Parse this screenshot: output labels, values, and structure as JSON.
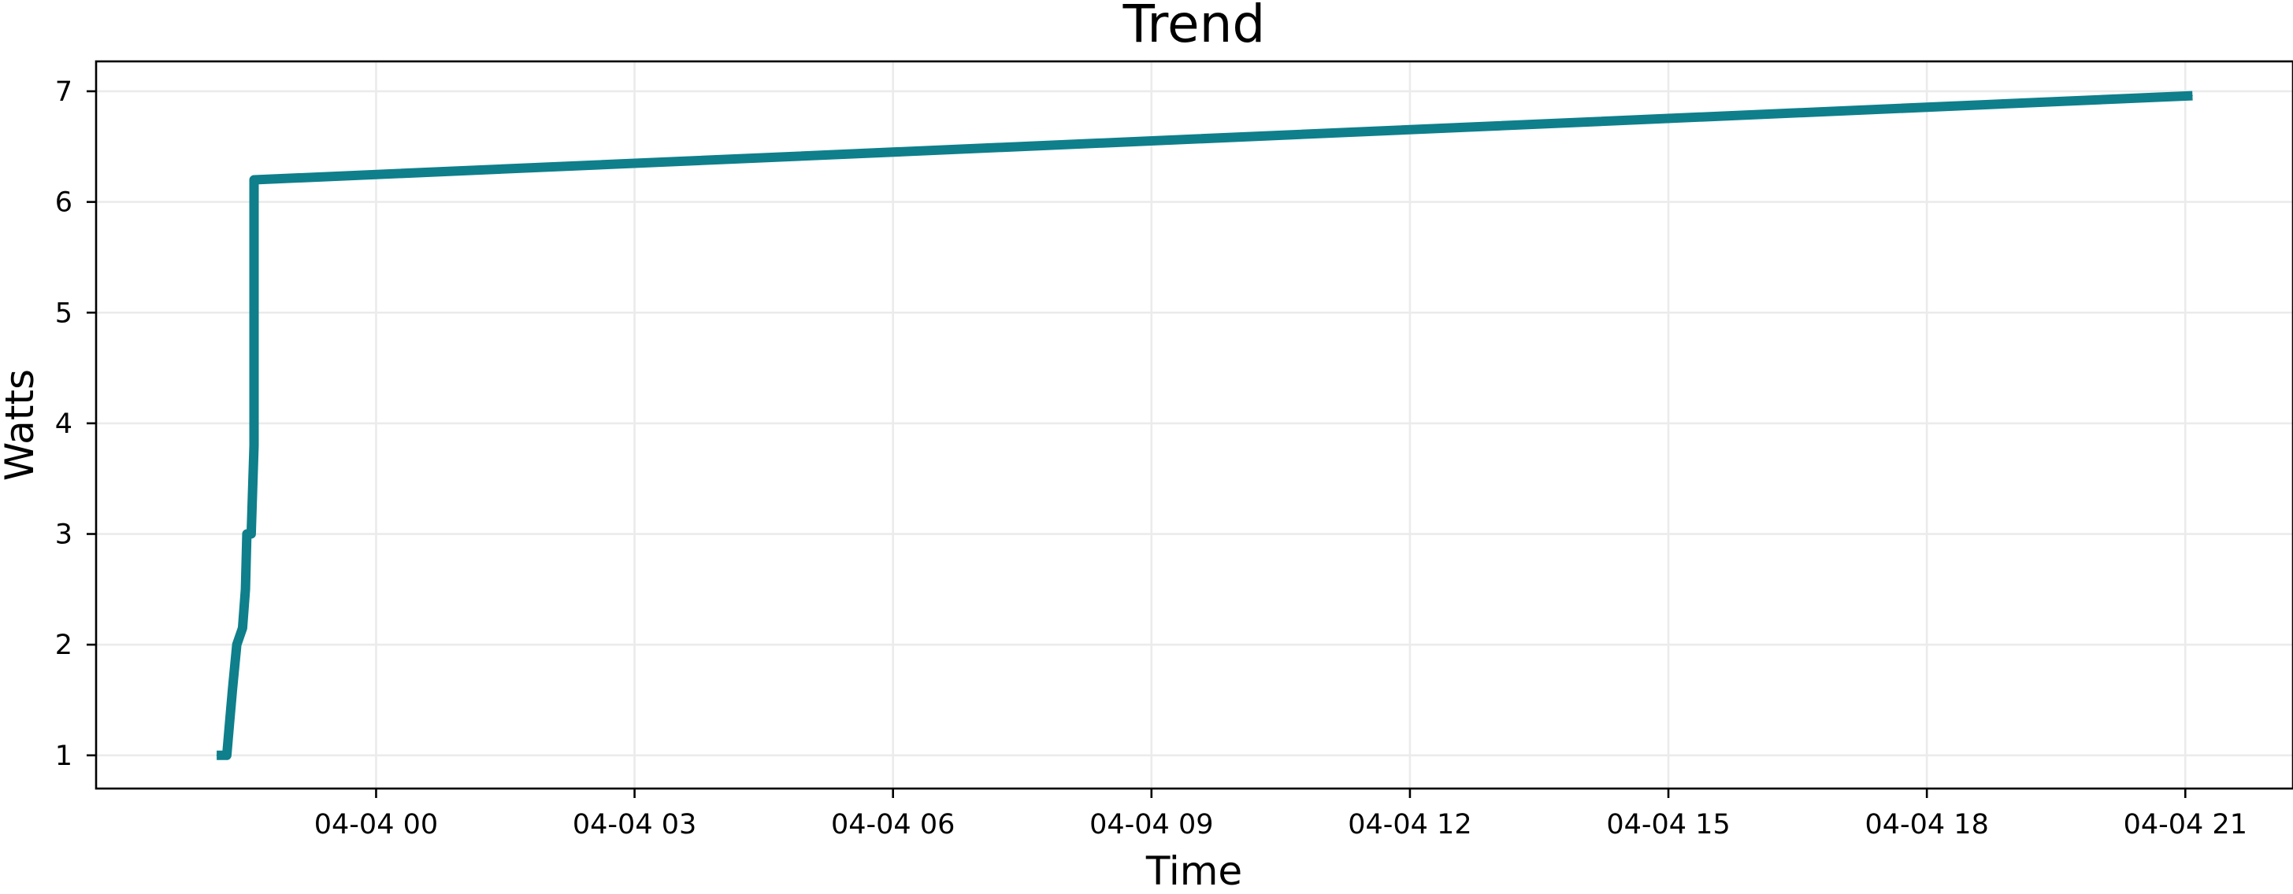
{
  "chart_data": {
    "type": "line",
    "title": "Trend",
    "xlabel": "Time",
    "ylabel": "Watts",
    "x_tick_labels": [
      "04-04 00",
      "04-04 03",
      "04-04 06",
      "04-04 09",
      "04-04 12",
      "04-04 15",
      "04-04 18",
      "04-04 21"
    ],
    "y_tick_labels": [
      "1",
      "2",
      "3",
      "4",
      "5",
      "6",
      "7"
    ],
    "grid": true,
    "line_color": "#0e7f8b",
    "xlim": [
      "04-03 20:45",
      "04-04 22:15"
    ],
    "ylim": [
      0.7,
      7.27
    ],
    "series": [
      {
        "points": [
          {
            "x": "04-03 22:09",
            "y": 1.0
          },
          {
            "x": "04-03 22:16",
            "y": 1.0
          },
          {
            "x": "04-03 22:18",
            "y": 1.3
          },
          {
            "x": "04-03 22:20",
            "y": 1.6
          },
          {
            "x": "04-03 22:23",
            "y": 2.0
          },
          {
            "x": "04-03 22:27",
            "y": 2.15
          },
          {
            "x": "04-03 22:29",
            "y": 2.5
          },
          {
            "x": "04-03 22:30",
            "y": 3.0
          },
          {
            "x": "04-03 22:33",
            "y": 3.0
          },
          {
            "x": "04-03 22:35",
            "y": 3.8
          },
          {
            "x": "04-03 22:35",
            "y": 6.2
          },
          {
            "x": "04-04 21:05",
            "y": 6.96
          }
        ]
      }
    ]
  }
}
